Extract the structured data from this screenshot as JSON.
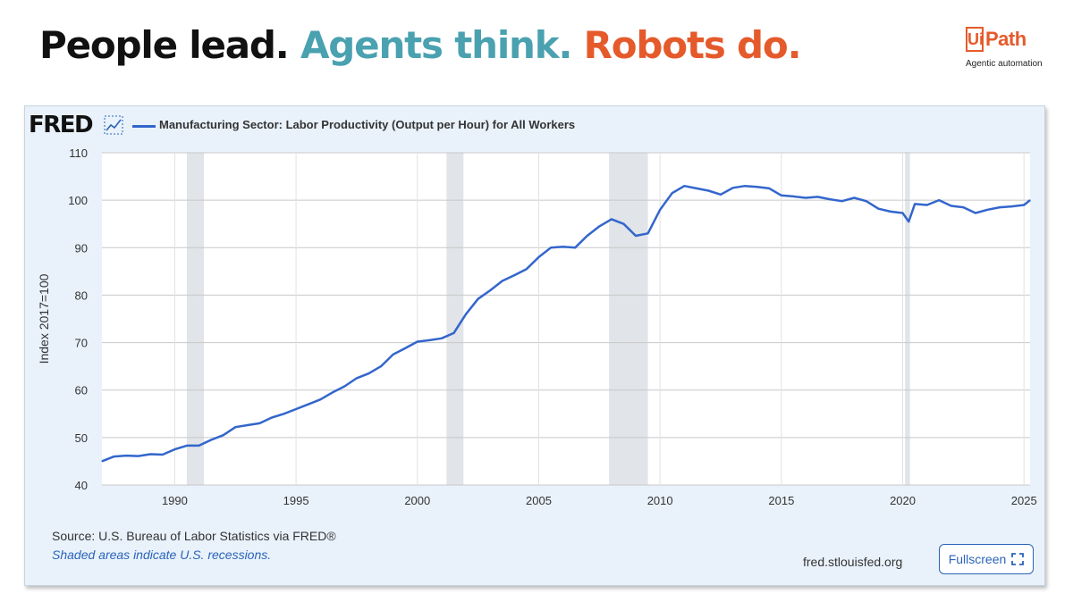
{
  "headline": {
    "part1": "People lead.",
    "part2": "Agents think.",
    "part3": "Robots do.",
    "colors": {
      "part1": "#111111",
      "part2": "#4aa1b0",
      "part3": "#e55a2b"
    }
  },
  "brand": {
    "logo_box": "Ui",
    "logo_rest": "Path",
    "tagline": "Agentic automation",
    "color": "#e55a2b"
  },
  "fred": {
    "logo_text": "FRED",
    "legend_label": "Manufacturing Sector: Labor Productivity (Output per Hour) for All Workers",
    "source": "Source: U.S. Bureau of Labor Statistics via FRED®",
    "recession_note": "Shaded areas indicate U.S. recessions.",
    "site": "fred.stlouisfed.org",
    "fullscreen_label": "Fullscreen",
    "graph_icon": "line-chart-icon",
    "fullscreen_icon": "expand-icon"
  },
  "chart_data": {
    "type": "line",
    "title": "Manufacturing Sector: Labor Productivity (Output per Hour) for All Workers",
    "xlabel": "",
    "ylabel": "Index 2017=100",
    "xlim": [
      1987,
      2025.25
    ],
    "ylim": [
      40,
      110
    ],
    "yticks": [
      40,
      50,
      60,
      70,
      80,
      90,
      100,
      110
    ],
    "xticks": [
      1990,
      1995,
      2000,
      2005,
      2010,
      2015,
      2020,
      2025
    ],
    "grid": true,
    "line_color": "#3366cc",
    "recessions": [
      [
        1990.5,
        1991.2
      ],
      [
        2001.2,
        2001.9
      ],
      [
        2007.9,
        2009.5
      ],
      [
        2020.1,
        2020.3
      ]
    ],
    "series": [
      {
        "name": "Manufacturing Sector: Labor Productivity (Output per Hour) for All Workers",
        "x": [
          1987.0,
          1987.5,
          1988.0,
          1988.5,
          1989.0,
          1989.5,
          1990.0,
          1990.5,
          1991.0,
          1991.5,
          1992.0,
          1992.5,
          1993.0,
          1993.5,
          1994.0,
          1994.5,
          1995.0,
          1995.5,
          1996.0,
          1996.5,
          1997.0,
          1997.5,
          1998.0,
          1998.5,
          1999.0,
          1999.5,
          2000.0,
          2000.5,
          2001.0,
          2001.5,
          2002.0,
          2002.5,
          2003.0,
          2003.5,
          2004.0,
          2004.5,
          2005.0,
          2005.5,
          2006.0,
          2006.5,
          2007.0,
          2007.5,
          2008.0,
          2008.5,
          2009.0,
          2009.5,
          2010.0,
          2010.5,
          2011.0,
          2011.5,
          2012.0,
          2012.5,
          2013.0,
          2013.5,
          2014.0,
          2014.5,
          2015.0,
          2015.5,
          2016.0,
          2016.5,
          2017.0,
          2017.5,
          2018.0,
          2018.5,
          2019.0,
          2019.5,
          2020.0,
          2020.25,
          2020.5,
          2021.0,
          2021.5,
          2022.0,
          2022.5,
          2023.0,
          2023.5,
          2024.0,
          2024.5,
          2025.0,
          2025.25
        ],
        "y": [
          45.0,
          46.0,
          46.2,
          46.1,
          46.5,
          46.4,
          47.5,
          48.3,
          48.3,
          49.5,
          50.5,
          52.2,
          52.6,
          53.0,
          54.2,
          55.0,
          56.0,
          57.0,
          58.0,
          59.5,
          60.8,
          62.5,
          63.5,
          65.0,
          67.5,
          68.8,
          70.2,
          70.5,
          70.9,
          72.0,
          76.0,
          79.2,
          81.0,
          83.0,
          84.2,
          85.5,
          88.0,
          90.0,
          90.2,
          90.0,
          92.5,
          94.5,
          96.0,
          95.0,
          92.5,
          93.0,
          98.0,
          101.5,
          103.0,
          102.5,
          102.0,
          101.2,
          102.6,
          103.0,
          102.8,
          102.5,
          101.0,
          100.8,
          100.5,
          100.7,
          100.2,
          99.8,
          100.5,
          99.8,
          98.2,
          97.6,
          97.3,
          95.5,
          99.2,
          99.0,
          100.0,
          98.8,
          98.5,
          97.3,
          98.0,
          98.5,
          98.7,
          99.0,
          100.0
        ]
      }
    ]
  }
}
